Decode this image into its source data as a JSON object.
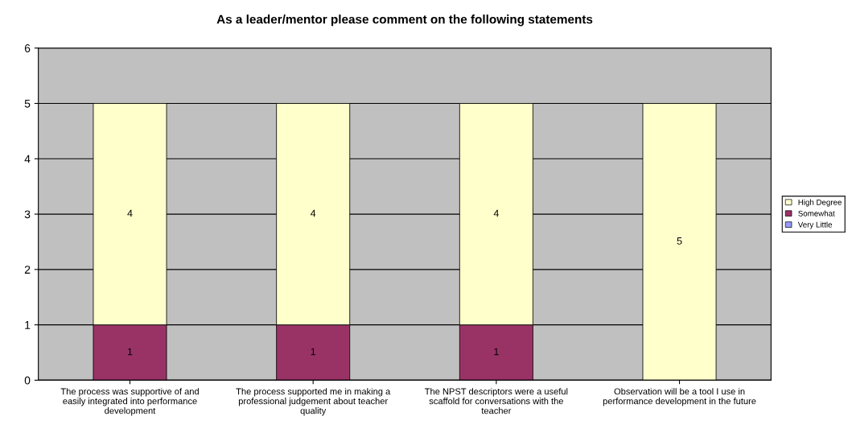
{
  "chart_data": {
    "type": "bar",
    "stacked": true,
    "title": "As a leader/mentor please comment on the following statements",
    "categories": [
      "The process was supportive of and\neasily integrated into performance\ndevelopment",
      "The process supported me in making a\nprofessional judgement about teacher\nquality",
      "The NPST descriptors were a useful\nscaffold for conversations with the\nteacher",
      "Observation will be a tool I use in\nperformance development in the future"
    ],
    "series": [
      {
        "name": "Very Little",
        "color": "#9999ff",
        "values": [
          0,
          0,
          0,
          0
        ],
        "value_labels": [
          null,
          null,
          null,
          null
        ]
      },
      {
        "name": "Somewhat",
        "color": "#993366",
        "values": [
          1,
          1,
          1,
          0
        ],
        "value_labels": [
          "1",
          "1",
          "1",
          null
        ]
      },
      {
        "name": "High Degree",
        "color": "#ffffcc",
        "values": [
          4,
          4,
          4,
          5
        ],
        "value_labels": [
          "4",
          "4",
          "4",
          "5"
        ]
      }
    ],
    "ylim": [
      0,
      6
    ],
    "yticks": [
      0,
      1,
      2,
      3,
      4,
      5,
      6
    ],
    "grid": "y",
    "legend": "right"
  }
}
